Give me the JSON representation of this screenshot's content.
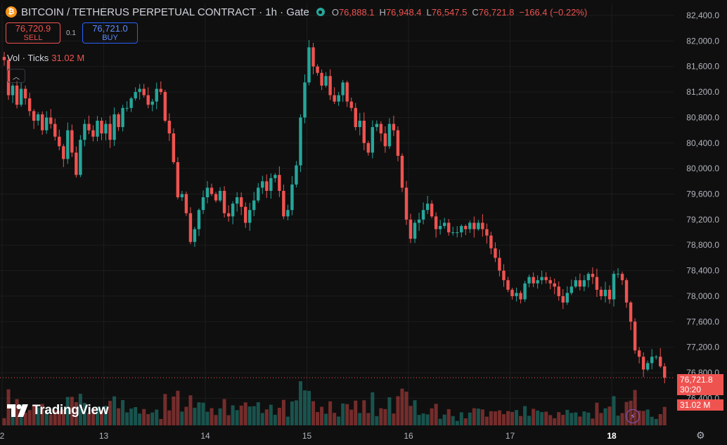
{
  "header": {
    "coin_icon": "bitcoin-icon",
    "title": "BITCOIN / TETHERUS PERPETUAL CONTRACT · 1h · Gate",
    "market_status_icon": "live-dot-icon",
    "ohlc": [
      {
        "key": "O",
        "value": "76,888.1"
      },
      {
        "key": "H",
        "value": "76,948.4"
      },
      {
        "key": "L",
        "value": "76,547.5"
      },
      {
        "key": "C",
        "value": "76,721.8"
      }
    ],
    "change": "−166.4 (−0.22%)"
  },
  "trading": {
    "sell_price": "76,720.9",
    "sell_label": "SELL",
    "spread": "0.1",
    "buy_price": "76,721.0",
    "buy_label": "BUY"
  },
  "volume_legend": {
    "label": "Vol · Ticks",
    "value": "31.02 M"
  },
  "collapse_icon": "chevron-up-icon",
  "logo_text": "TradingView",
  "last_price_label": {
    "price": "76,721.8",
    "countdown": "30:20"
  },
  "volume_label": "31.02 M",
  "bolt_icon": "lightning-icon",
  "settings_icon": "gear-icon",
  "colors": {
    "up": "#26a69a",
    "down": "#ef5350",
    "background": "#0f0f0f"
  },
  "chart_data": {
    "type": "candlestick",
    "interval": "1h",
    "y_tick_labels": [
      "82,400.0",
      "82,000.0",
      "81,600.0",
      "81,200.0",
      "80,800.0",
      "80,400.0",
      "80,000.0",
      "79,600.0",
      "79,200.0",
      "78,800.0",
      "78,400.0",
      "78,000.0",
      "77,600.0",
      "77,200.0",
      "76,800.0",
      "76,400.0"
    ],
    "y_ticks": [
      82400,
      82000,
      81600,
      81200,
      80800,
      80400,
      80000,
      79600,
      79200,
      78800,
      78400,
      78000,
      77600,
      77200,
      76800,
      76400
    ],
    "ylim": [
      76300,
      82650
    ],
    "x_tick_labels": [
      "2",
      "13",
      "14",
      "15",
      "16",
      "17",
      "18"
    ],
    "x_tick_bars": [
      0,
      24,
      48,
      72,
      96,
      120,
      144
    ],
    "bars_per_day": 24,
    "last_price": 76721.8,
    "closes": [
      81700,
      81150,
      81300,
      81000,
      81250,
      81100,
      80900,
      80750,
      80850,
      80600,
      80800,
      80700,
      80500,
      80350,
      80150,
      80600,
      80250,
      79900,
      80450,
      80700,
      80600,
      80500,
      80750,
      80550,
      80700,
      80450,
      80850,
      80650,
      80950,
      80950,
      81100,
      81200,
      81250,
      81150,
      81000,
      81050,
      81250,
      81200,
      80750,
      80550,
      80100,
      79550,
      79600,
      79300,
      78850,
      79050,
      79350,
      79550,
      79700,
      79600,
      79500,
      79650,
      79300,
      79250,
      79450,
      79550,
      79400,
      79150,
      79350,
      79500,
      79700,
      79800,
      79650,
      79850,
      79900,
      79650,
      79250,
      79350,
      79750,
      80050,
      80800,
      81350,
      81900,
      81600,
      81500,
      81300,
      81450,
      81150,
      81050,
      81150,
      81350,
      81050,
      80950,
      80650,
      80750,
      80400,
      80250,
      80650,
      80700,
      80550,
      80350,
      80700,
      80600,
      80200,
      79700,
      79200,
      78900,
      79150,
      79200,
      79350,
      79450,
      79250,
      79050,
      79100,
      79150,
      79000,
      79000,
      79000,
      79100,
      79050,
      79150,
      79050,
      79150,
      79050,
      78950,
      78750,
      78600,
      78400,
      78250,
      78100,
      78000,
      78050,
      77950,
      78200,
      78300,
      78200,
      78250,
      78300,
      78250,
      78200,
      78150,
      78000,
      77900,
      78050,
      78150,
      78250,
      78150,
      78250,
      78350,
      78300,
      78100,
      78000,
      78100,
      77950,
      78350,
      78350,
      78250,
      77900,
      77600,
      77150,
      77050,
      76850,
      76950,
      77050,
      77050,
      76900,
      76722
    ]
  }
}
